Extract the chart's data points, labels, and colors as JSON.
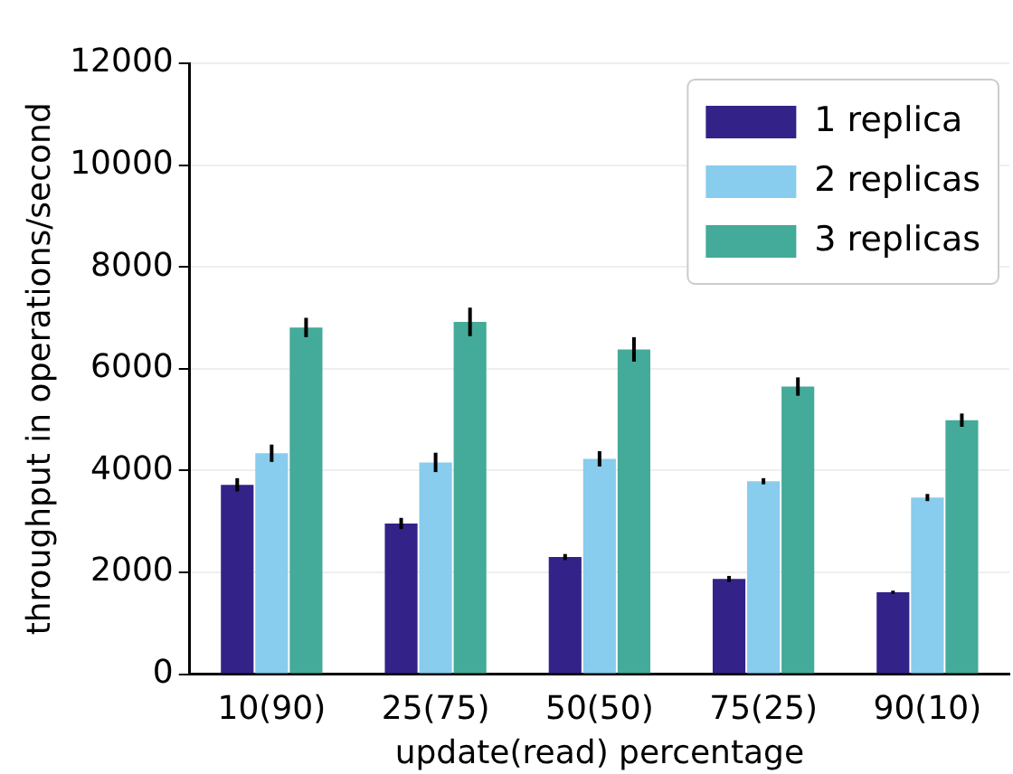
{
  "chart_data": {
    "type": "bar",
    "xlabel": "update(read) percentage",
    "ylabel": "throughput in operations/second",
    "categories": [
      "10(90)",
      "25(75)",
      "50(50)",
      "75(25)",
      "90(10)"
    ],
    "series": [
      {
        "name": "1 replica",
        "color": "#332288",
        "values": [
          3720,
          2960,
          2300,
          1870,
          1610
        ],
        "errors": [
          130,
          110,
          60,
          60,
          30
        ]
      },
      {
        "name": "2 replicas",
        "color": "#88ccee",
        "values": [
          4340,
          4160,
          4230,
          3790,
          3470
        ],
        "errors": [
          170,
          190,
          150,
          60,
          70
        ]
      },
      {
        "name": "3 replicas",
        "color": "#44aa99",
        "values": [
          6810,
          6920,
          6380,
          5650,
          4990
        ],
        "errors": [
          190,
          280,
          240,
          180,
          130
        ]
      }
    ],
    "ylim": [
      0,
      12000
    ],
    "yticks": [
      0,
      2000,
      4000,
      6000,
      8000,
      10000,
      12000
    ],
    "grid": "y",
    "legend": "top right"
  }
}
